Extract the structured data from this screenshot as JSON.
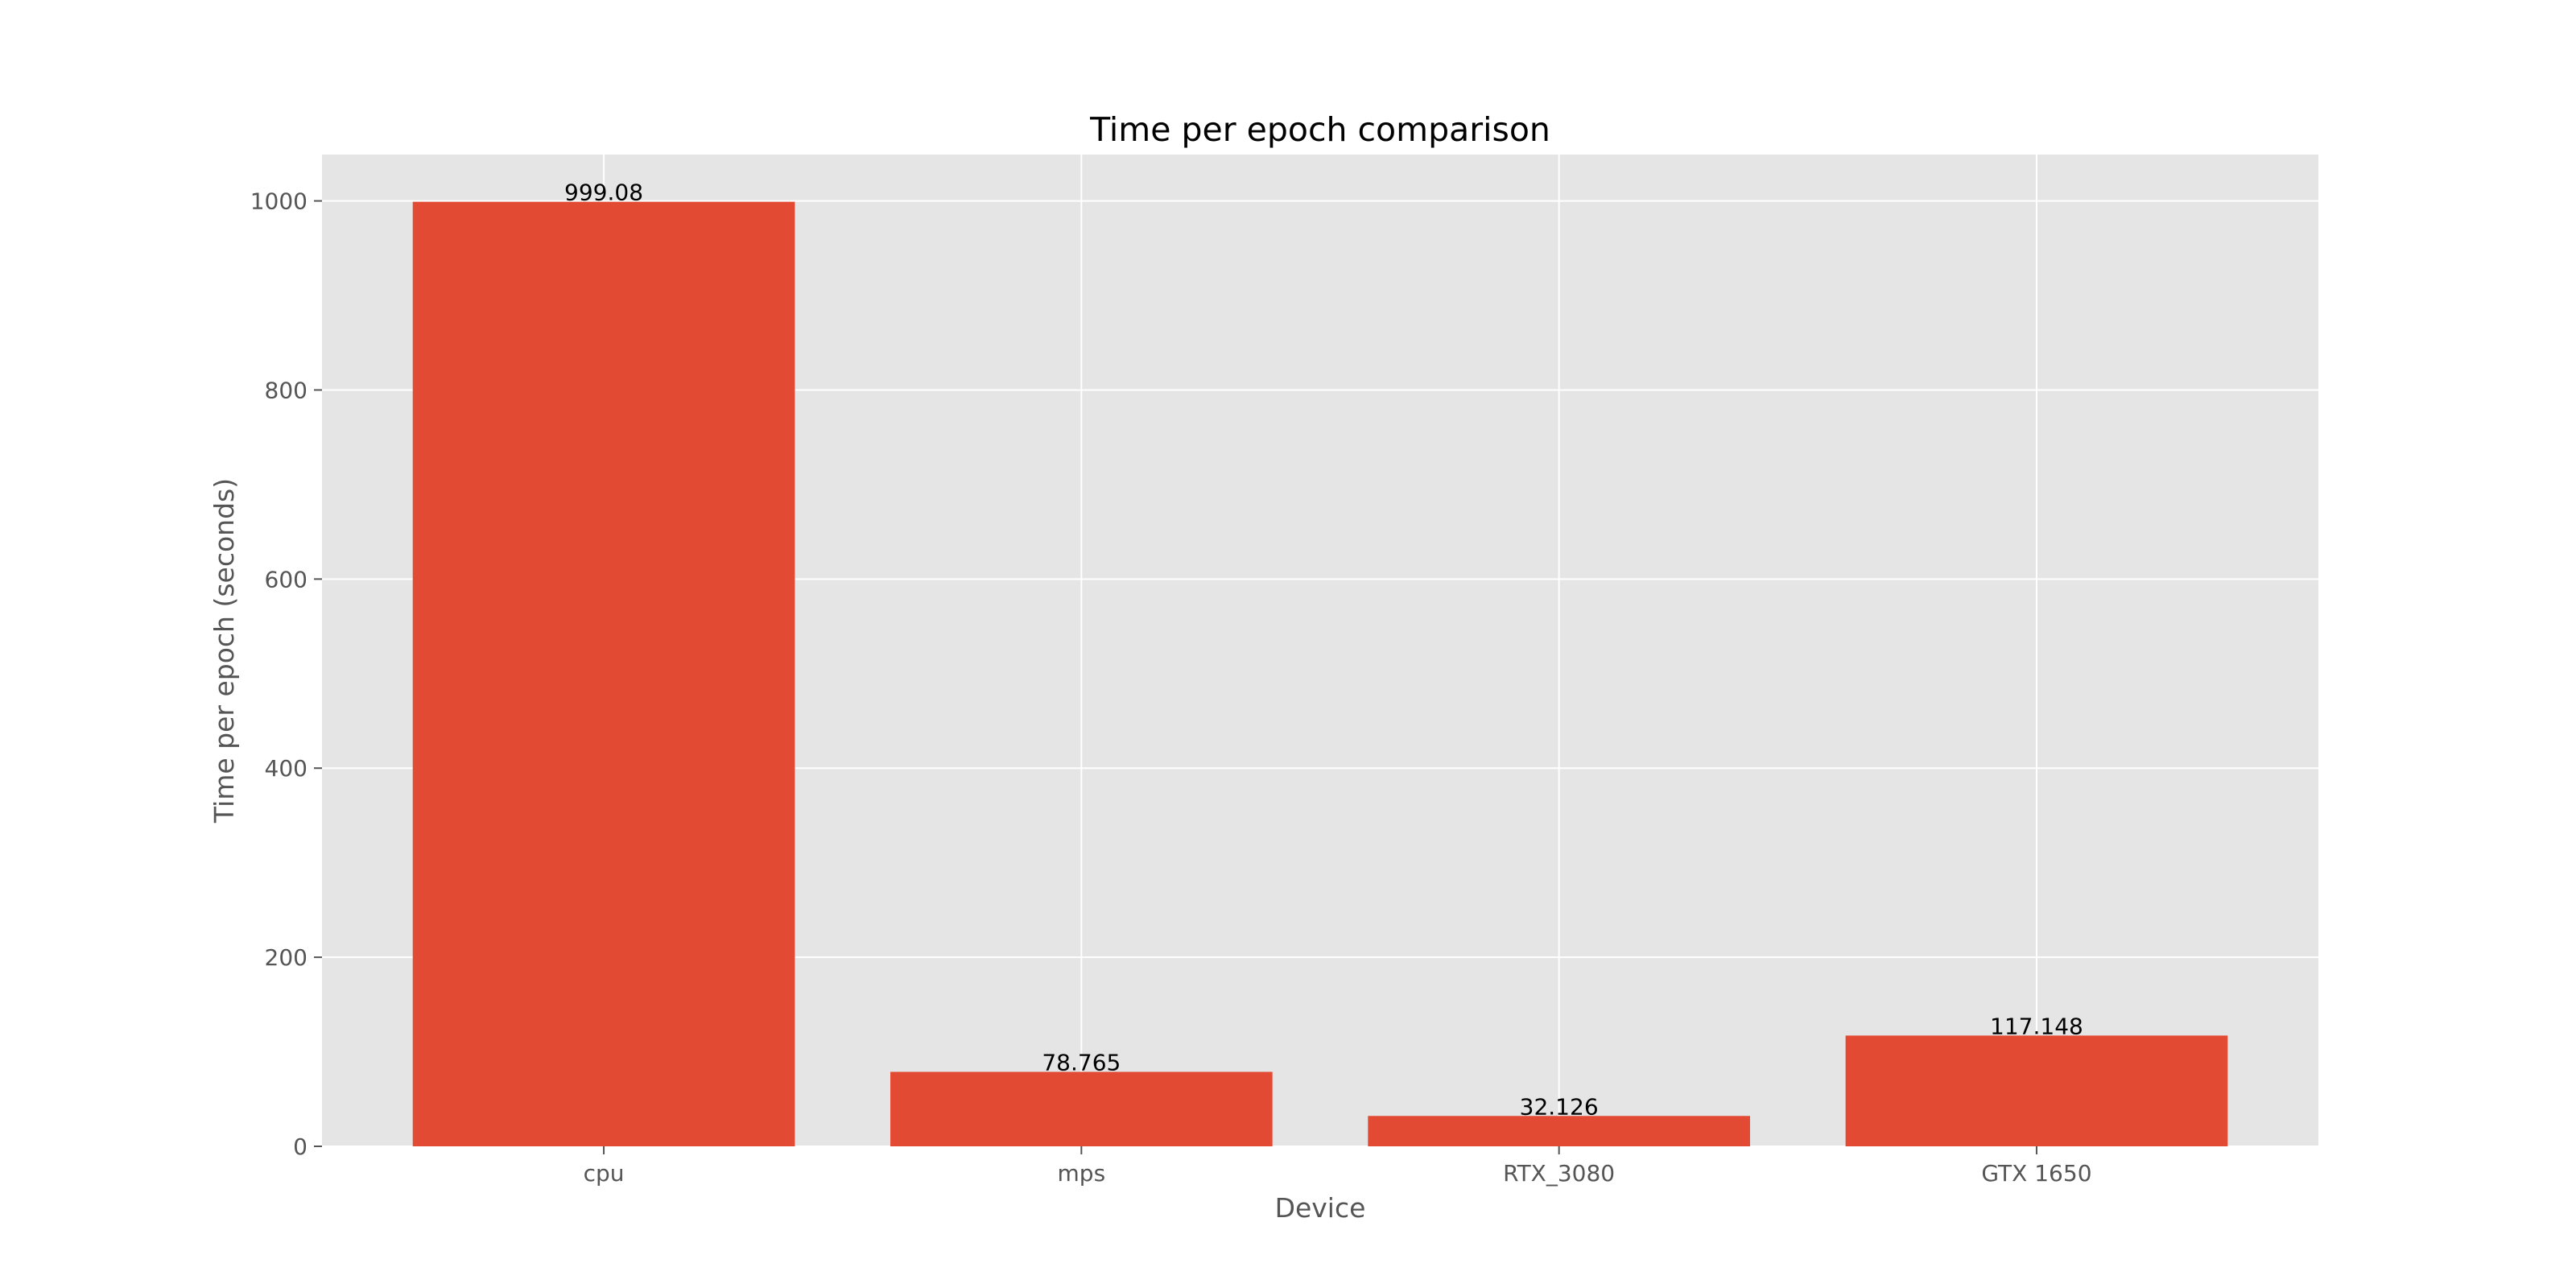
{
  "chart_data": {
    "type": "bar",
    "title": "Time per epoch comparison",
    "xlabel": "Device",
    "ylabel": "Time per epoch (seconds)",
    "categories": [
      "cpu",
      "mps",
      "RTX_3080",
      "GTX 1650"
    ],
    "values": [
      999.08,
      78.765,
      32.126,
      117.148
    ],
    "value_labels": [
      "999.08",
      "78.765",
      "32.126",
      "117.148"
    ],
    "yticks": [
      0,
      200,
      400,
      600,
      800,
      1000
    ],
    "ylim": [
      0,
      1049.03
    ],
    "grid": true,
    "legend": "none",
    "colors": {
      "bar": "#E24A33",
      "plot_background": "#E5E5E5",
      "grid": "#FFFFFF",
      "tick": "#555555"
    }
  }
}
